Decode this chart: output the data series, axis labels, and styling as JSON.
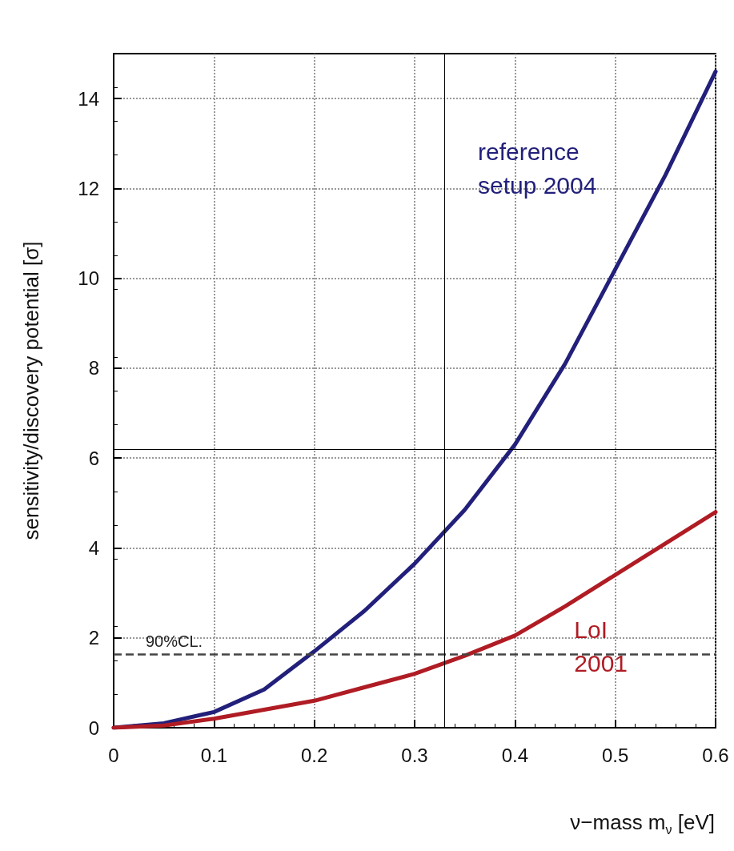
{
  "chart_data": {
    "type": "line",
    "xlabel": "ν−mass m$_{ν}$ [eV]",
    "ylabel": "sensitivity/discovery potential [σ]",
    "x": [
      0,
      0.05,
      0.1,
      0.15,
      0.2,
      0.25,
      0.3,
      0.35,
      0.4,
      0.45,
      0.5,
      0.55,
      0.6
    ],
    "series": [
      {
        "name": "reference setup 2004",
        "color": "#22207a",
        "values": [
          0,
          0.1,
          0.35,
          0.85,
          1.7,
          2.6,
          3.65,
          4.85,
          6.3,
          8.1,
          10.2,
          12.3,
          14.6
        ]
      },
      {
        "name": "LoI 2001",
        "color": "#b01c24",
        "values": [
          0,
          0.05,
          0.2,
          0.4,
          0.6,
          0.9,
          1.2,
          1.6,
          2.05,
          2.7,
          3.4,
          4.1,
          4.8
        ]
      }
    ],
    "ref_lines": [
      {
        "axis": "y",
        "value": 1.64,
        "label": "90%CL.",
        "line_style": "dashed",
        "color": "#444444"
      },
      {
        "axis": "x",
        "value": 0.33,
        "label": null,
        "line_style": "solid",
        "color": "#000000"
      },
      {
        "axis": "y",
        "value": 6.2,
        "label": null,
        "line_style": "solid",
        "color": "#000000"
      }
    ],
    "xlim": [
      0,
      0.6
    ],
    "xticks": [
      0,
      0.1,
      0.2,
      0.3,
      0.4,
      0.5,
      0.6
    ],
    "ylim": [
      0,
      15
    ],
    "yticks": [
      0,
      2,
      4,
      6,
      8,
      10,
      12,
      14
    ],
    "grid": true,
    "marker": "none",
    "line_style": "solid"
  }
}
